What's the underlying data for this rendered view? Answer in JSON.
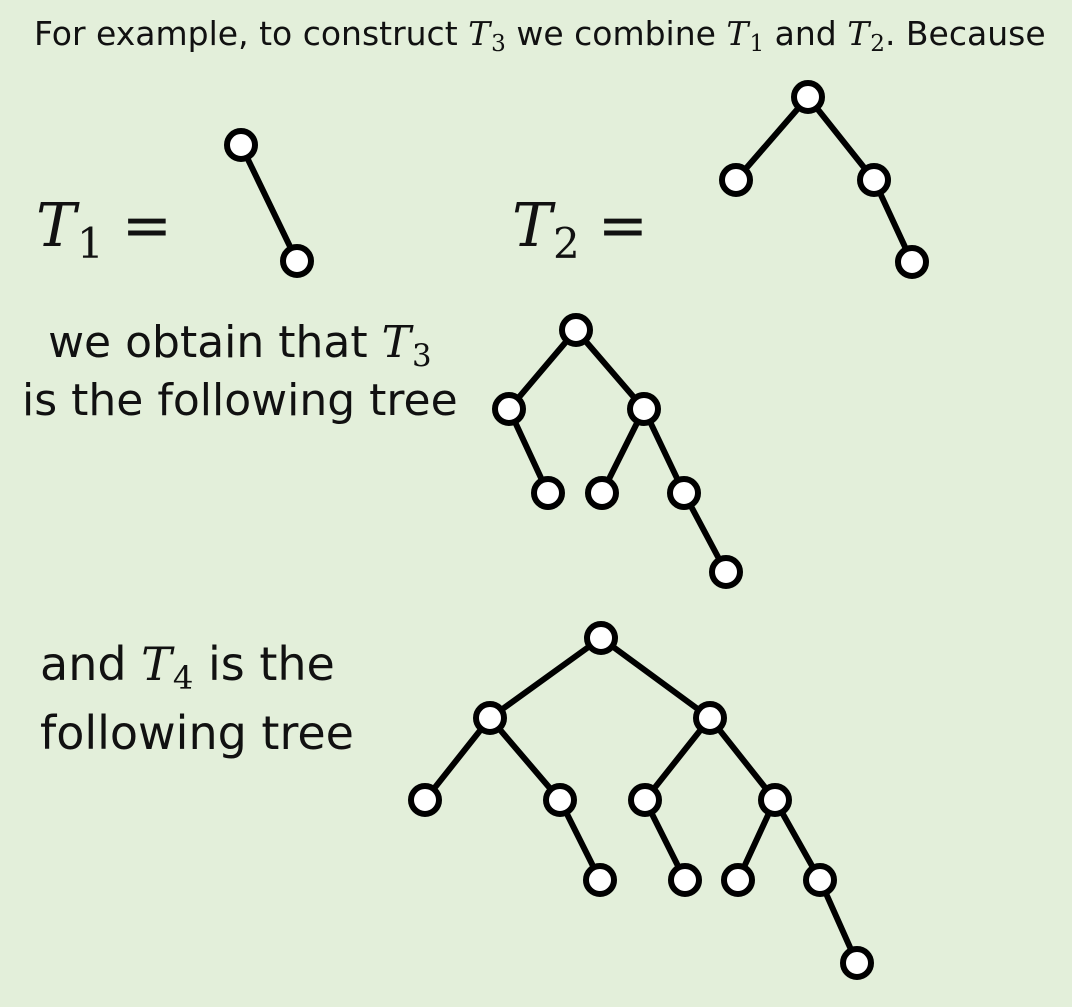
{
  "intro": {
    "before_t3": "For example, to construct ",
    "t3": "T",
    "t3_sub": "3",
    "middle": " we combine ",
    "t1": "T",
    "t1_sub": "1",
    "and": " and ",
    "t2": "T",
    "t2_sub": "2",
    "end": ". Because"
  },
  "t1_label": {
    "var": "T",
    "sub": "1",
    "eq": "="
  },
  "t2_label": {
    "var": "T",
    "sub": "2",
    "eq": "="
  },
  "t3_caption": {
    "line1_text": "we obtain that ",
    "line1_var": "T",
    "line1_sub": "3",
    "line2": "is the following tree"
  },
  "t4_caption": {
    "line1_pre": "and ",
    "line1_var": "T",
    "line1_sub": "4",
    "line1_post": " is the",
    "line2": "following tree"
  },
  "colors": {
    "background": "#e3efda",
    "stroke": "#000000",
    "node_fill": "#ffffff"
  },
  "trees": [
    {
      "name": "T1",
      "nodes": 2
    },
    {
      "name": "T2",
      "nodes": 4
    },
    {
      "name": "T3",
      "nodes": 7
    },
    {
      "name": "T4",
      "nodes": 12
    }
  ]
}
